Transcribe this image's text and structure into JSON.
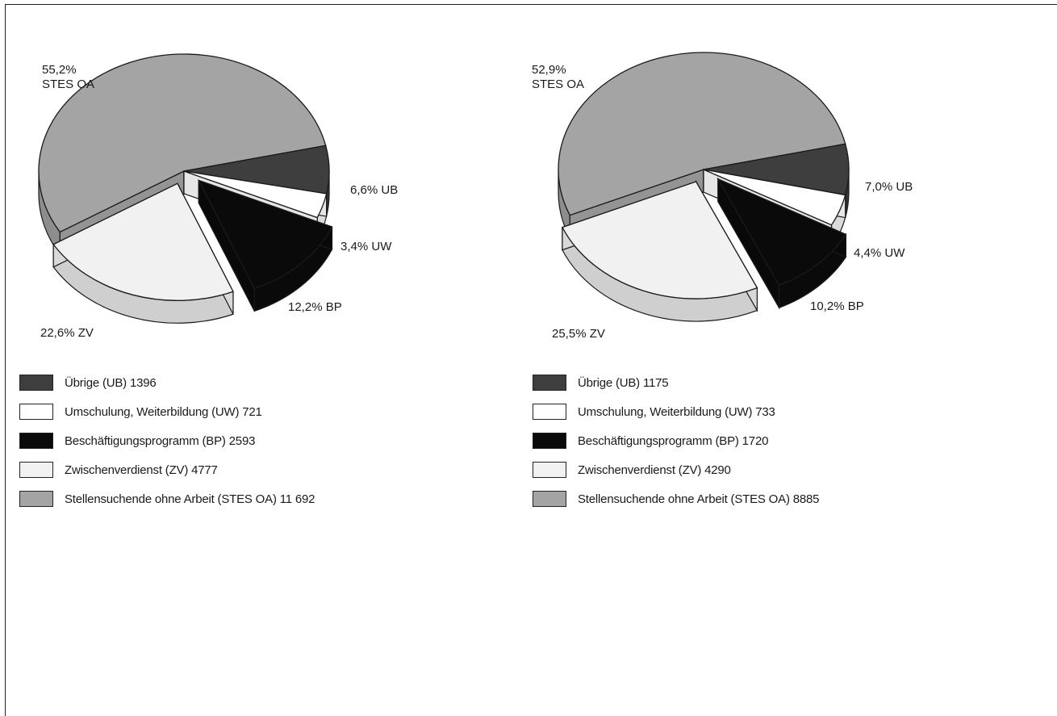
{
  "chart_data": [
    {
      "type": "pie",
      "slices": [
        {
          "key": "UB",
          "legend": "Übrige (UB) 1396",
          "value": 1396,
          "percent": 6.6,
          "label": "6,6% UB",
          "color": "#3e3e3e",
          "exploded": false
        },
        {
          "key": "UW",
          "legend": "Umschulung, Weiterbildung (UW) 721",
          "value": 721,
          "percent": 3.4,
          "label": "3,4% UW",
          "color": "#ffffff",
          "exploded": false
        },
        {
          "key": "BP",
          "legend": "Beschäftigungsprogramm (BP) 2593",
          "value": 2593,
          "percent": 12.2,
          "label": "12,2% BP",
          "color": "#0a0a0a",
          "exploded": true
        },
        {
          "key": "ZV",
          "legend": "Zwischenverdienst (ZV) 4777",
          "value": 4777,
          "percent": 22.6,
          "label": "22,6% ZV",
          "color": "#f1f1f1",
          "exploded": true
        },
        {
          "key": "STES_OA",
          "legend": "Stellensuchende ohne Arbeit (STES OA) 11 692",
          "value": 11692,
          "percent": 55.2,
          "label_line1": "55,2%",
          "label_line2": "STES OA",
          "color": "#a4a4a4",
          "exploded": false
        }
      ]
    },
    {
      "type": "pie",
      "slices": [
        {
          "key": "UB",
          "legend": "Übrige (UB) 1175",
          "value": 1175,
          "percent": 7.0,
          "label": "7,0% UB",
          "color": "#3e3e3e",
          "exploded": false
        },
        {
          "key": "UW",
          "legend": "Umschulung, Weiterbildung (UW) 733",
          "value": 733,
          "percent": 4.4,
          "label": "4,4% UW",
          "color": "#ffffff",
          "exploded": false
        },
        {
          "key": "BP",
          "legend": "Beschäftigungsprogramm (BP) 1720",
          "value": 1720,
          "percent": 10.2,
          "label": "10,2% BP",
          "color": "#0a0a0a",
          "exploded": true
        },
        {
          "key": "ZV",
          "legend": "Zwischenverdienst (ZV) 4290",
          "value": 4290,
          "percent": 25.5,
          "label": "25,5% ZV",
          "color": "#f1f1f1",
          "exploded": true
        },
        {
          "key": "STES_OA",
          "legend": "Stellensuchende ohne Arbeit (STES OA) 8885",
          "value": 8885,
          "percent": 52.9,
          "label_line1": "52,9%",
          "label_line2": "STES OA",
          "color": "#a4a4a4",
          "exploded": false
        }
      ]
    }
  ]
}
